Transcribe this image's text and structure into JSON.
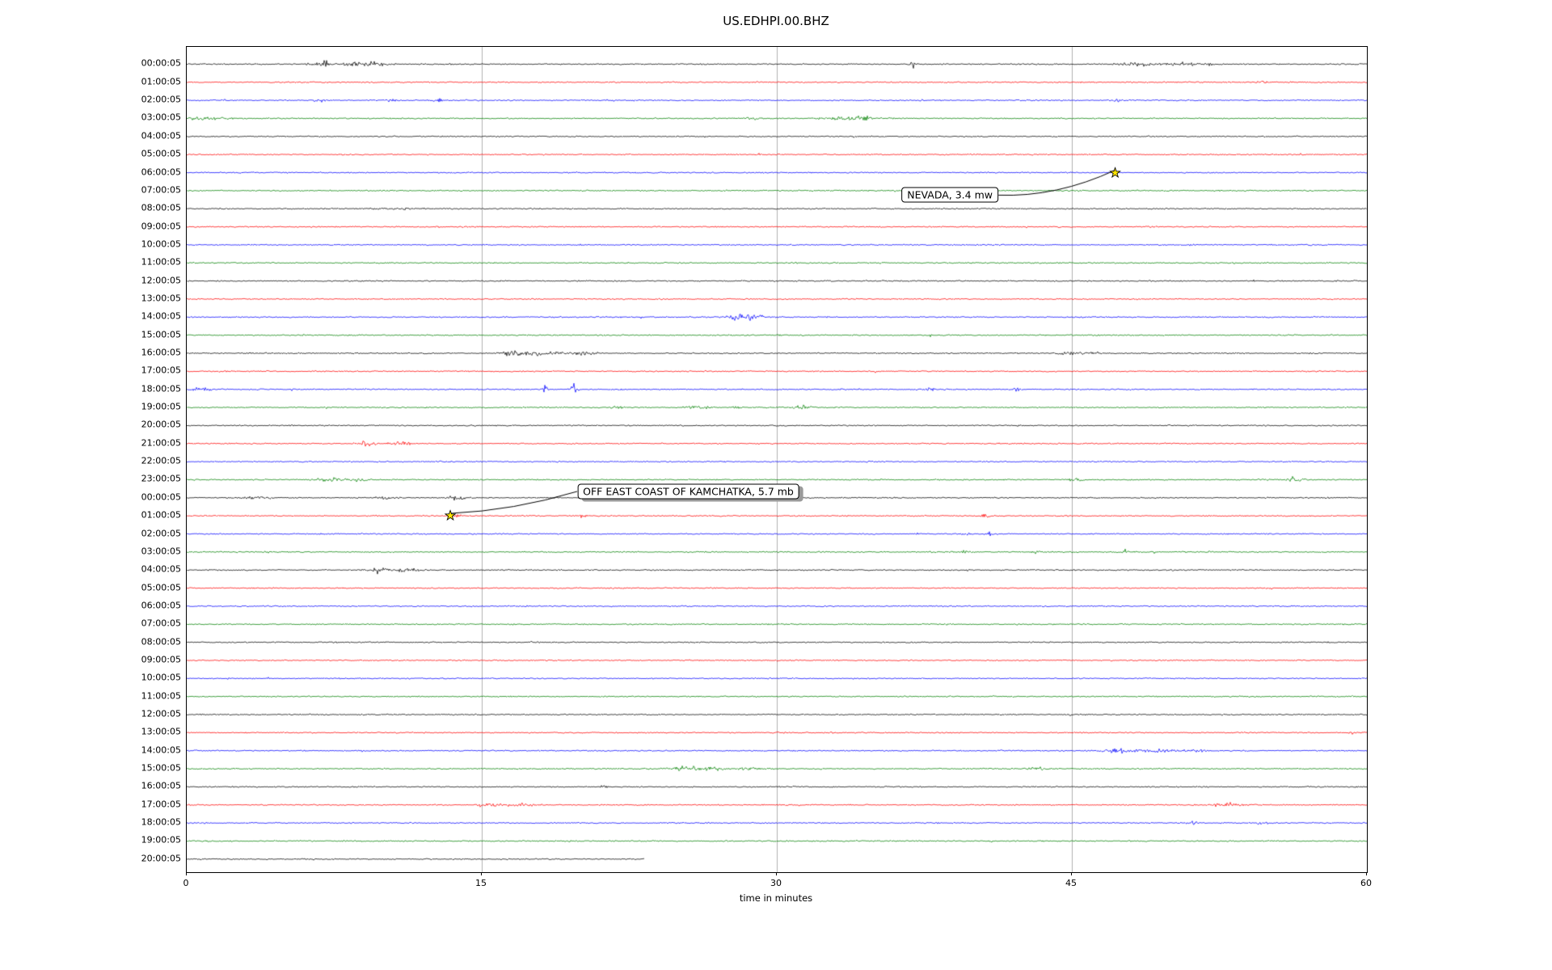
{
  "chart_data": {
    "type": "line",
    "subtype": "seismogram-dayplot",
    "title": "US.EDHPI.00.BHZ",
    "xlabel": "time in minutes",
    "x_ticks": [
      0,
      15,
      30,
      45,
      60
    ],
    "x_range": [
      0,
      60
    ],
    "grid": "vertical-only",
    "grid_color": "#b0b0b0",
    "trace_color_cycle": [
      "#000000",
      "#ff0000",
      "#0000ff",
      "#008000"
    ],
    "row_labels": [
      "00:00:05",
      "01:00:05",
      "02:00:05",
      "03:00:05",
      "04:00:05",
      "05:00:05",
      "06:00:05",
      "07:00:05",
      "08:00:05",
      "09:00:05",
      "10:00:05",
      "11:00:05",
      "12:00:05",
      "13:00:05",
      "14:00:05",
      "15:00:05",
      "16:00:05",
      "17:00:05",
      "18:00:05",
      "19:00:05",
      "20:00:05",
      "21:00:05",
      "22:00:05",
      "23:00:05",
      "00:00:05",
      "01:00:05",
      "02:00:05",
      "03:00:05",
      "04:00:05",
      "05:00:05",
      "06:00:05",
      "07:00:05",
      "08:00:05",
      "09:00:05",
      "10:00:05",
      "11:00:05",
      "12:00:05",
      "13:00:05",
      "14:00:05",
      "15:00:05",
      "16:00:05",
      "17:00:05",
      "18:00:05",
      "19:00:05",
      "20:00:05"
    ],
    "events": [
      {
        "label": "NEVADA, 3.4 mw",
        "marker_minute": 47.2,
        "marker_row": 6,
        "label_minute": 38.8,
        "label_row": 7.25,
        "connector_from": "right",
        "shadow": false,
        "marker_color": "#ffe600"
      },
      {
        "label": "OFF EAST COAST OF KAMCHATKA, 5.7 mb",
        "marker_minute": 13.4,
        "marker_row": 25,
        "label_minute": 25.5,
        "label_row": 23.65,
        "connector_from": "left",
        "shadow": true,
        "marker_color": "#ffe600"
      }
    ],
    "last_trace_end_minute": 23.3,
    "noise_bursts": [
      [
        0,
        7.0,
        0.15,
        7
      ],
      [
        0,
        6.5,
        0.4,
        2.5
      ],
      [
        0,
        8.6,
        0.9,
        2.8
      ],
      [
        0,
        9.6,
        0.4,
        3
      ],
      [
        0,
        36.9,
        0.12,
        6
      ],
      [
        0,
        48.3,
        1.0,
        2.6
      ],
      [
        0,
        50.6,
        0.7,
        2.8
      ],
      [
        0,
        51.9,
        0.25,
        3.5
      ],
      [
        1,
        54.6,
        0.3,
        2.2
      ],
      [
        2,
        12.8,
        0.18,
        6
      ],
      [
        2,
        6.7,
        0.4,
        2
      ],
      [
        2,
        10.4,
        0.4,
        2
      ],
      [
        2,
        47.2,
        0.25,
        2.2
      ],
      [
        3,
        0.8,
        1.2,
        2.6
      ],
      [
        3,
        28.8,
        0.5,
        1.8
      ],
      [
        3,
        33.4,
        0.9,
        3.2
      ],
      [
        3,
        34.6,
        0.3,
        2.6
      ],
      [
        8,
        10.5,
        1.5,
        1.0
      ],
      [
        14,
        28.1,
        0.5,
        7.5
      ],
      [
        14,
        28.9,
        0.35,
        4.5
      ],
      [
        16,
        16.2,
        0.4,
        2.6
      ],
      [
        16,
        17.6,
        1.2,
        3.2
      ],
      [
        16,
        20.1,
        0.7,
        2.6
      ],
      [
        16,
        45.4,
        1.0,
        2.8
      ],
      [
        18,
        18.2,
        0.12,
        9
      ],
      [
        18,
        19.7,
        0.15,
        12
      ],
      [
        18,
        0.6,
        0.8,
        2.2
      ],
      [
        18,
        37.8,
        0.2,
        2.4
      ],
      [
        18,
        42.2,
        0.2,
        2.6
      ],
      [
        19,
        21.7,
        0.35,
        2.8
      ],
      [
        19,
        26.0,
        0.5,
        3.4
      ],
      [
        19,
        27.9,
        0.25,
        3
      ],
      [
        19,
        31.4,
        0.45,
        3.6
      ],
      [
        21,
        9.1,
        0.45,
        3.8
      ],
      [
        21,
        10.8,
        0.45,
        3.2
      ],
      [
        23,
        7.4,
        0.7,
        3.2
      ],
      [
        23,
        8.8,
        0.35,
        2.8
      ],
      [
        23,
        45.2,
        0.5,
        2.2
      ],
      [
        23,
        56.2,
        0.18,
        8
      ],
      [
        23,
        56.7,
        0.15,
        4.5
      ],
      [
        24,
        3.6,
        0.7,
        2.2
      ],
      [
        24,
        10.2,
        0.5,
        2.2
      ],
      [
        24,
        13.6,
        0.5,
        3
      ],
      [
        25,
        13.8,
        0.25,
        2
      ],
      [
        25,
        20.1,
        0.25,
        2.2
      ],
      [
        25,
        40.6,
        0.15,
        3.5
      ],
      [
        26,
        39.6,
        0.25,
        4.5
      ],
      [
        26,
        40.8,
        0.18,
        3.5
      ],
      [
        27,
        39.6,
        0.25,
        3.5
      ],
      [
        27,
        43.1,
        0.25,
        2.2
      ],
      [
        27,
        47.6,
        0.25,
        2.6
      ],
      [
        28,
        9.8,
        0.7,
        2.6
      ],
      [
        28,
        11.2,
        0.5,
        3
      ],
      [
        38,
        47.3,
        0.5,
        3
      ],
      [
        38,
        48.7,
        1.3,
        2.6
      ],
      [
        38,
        51.2,
        0.5,
        2.2
      ],
      [
        39,
        25.2,
        0.6,
        2.6
      ],
      [
        39,
        26.6,
        0.9,
        2.8
      ],
      [
        39,
        28.6,
        0.5,
        2.6
      ],
      [
        39,
        43.2,
        0.4,
        2.6
      ],
      [
        40,
        21.2,
        0.15,
        3.2
      ],
      [
        41,
        15.7,
        0.8,
        2.6
      ],
      [
        41,
        17.2,
        0.5,
        2.6
      ],
      [
        41,
        52.7,
        0.8,
        3
      ],
      [
        42,
        51.2,
        0.25,
        3
      ],
      [
        42,
        54.6,
        0.2,
        3.5
      ]
    ]
  }
}
